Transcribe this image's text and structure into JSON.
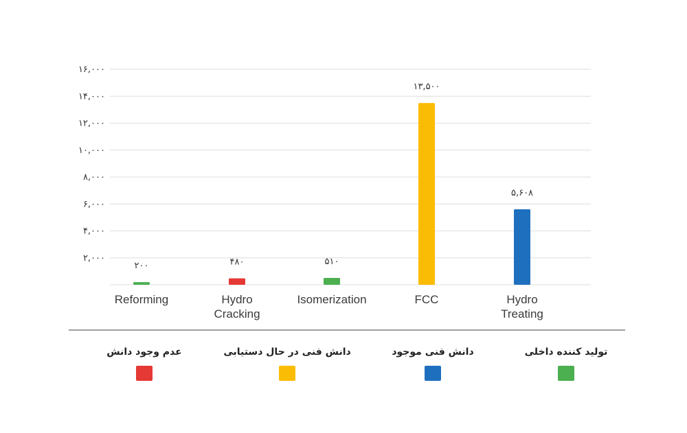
{
  "chart_data": {
    "type": "bar",
    "categories": [
      "Reforming",
      "Hydro\nCracking",
      "Isomerization",
      "FCC",
      "Hydro\nTreating"
    ],
    "values": [
      200,
      480,
      510,
      13500,
      5608
    ],
    "value_labels": [
      "۲۰۰",
      "۴۸۰",
      "۵۱۰",
      "۱۳,۵۰۰",
      "۵,۶۰۸"
    ],
    "bar_colors": [
      "#4caf50",
      "#e53935",
      "#4caf50",
      "#fbbc05",
      "#1f6fbf"
    ],
    "ylim": [
      0,
      16000
    ],
    "yticks": [
      2000,
      4000,
      6000,
      8000,
      10000,
      12000,
      14000,
      16000
    ],
    "ytick_labels": [
      "۲,۰۰۰",
      "۴,۰۰۰",
      "۶,۰۰۰",
      "۸,۰۰۰",
      "۱۰,۰۰۰",
      "۱۲,۰۰۰",
      "۱۴,۰۰۰",
      "۱۶,۰۰۰"
    ],
    "grid": true,
    "legend_position": "bottom",
    "legend": [
      {
        "name": "عدم وجود دانش",
        "color": "#e53935"
      },
      {
        "name": "دانش فنی در حال دستیابی",
        "color": "#fbbc05"
      },
      {
        "name": "دانش فنی موجود",
        "color": "#1f6fbf"
      },
      {
        "name": "تولید کننده داخلی",
        "color": "#4caf50"
      }
    ],
    "title": "",
    "xlabel": "",
    "ylabel": ""
  }
}
